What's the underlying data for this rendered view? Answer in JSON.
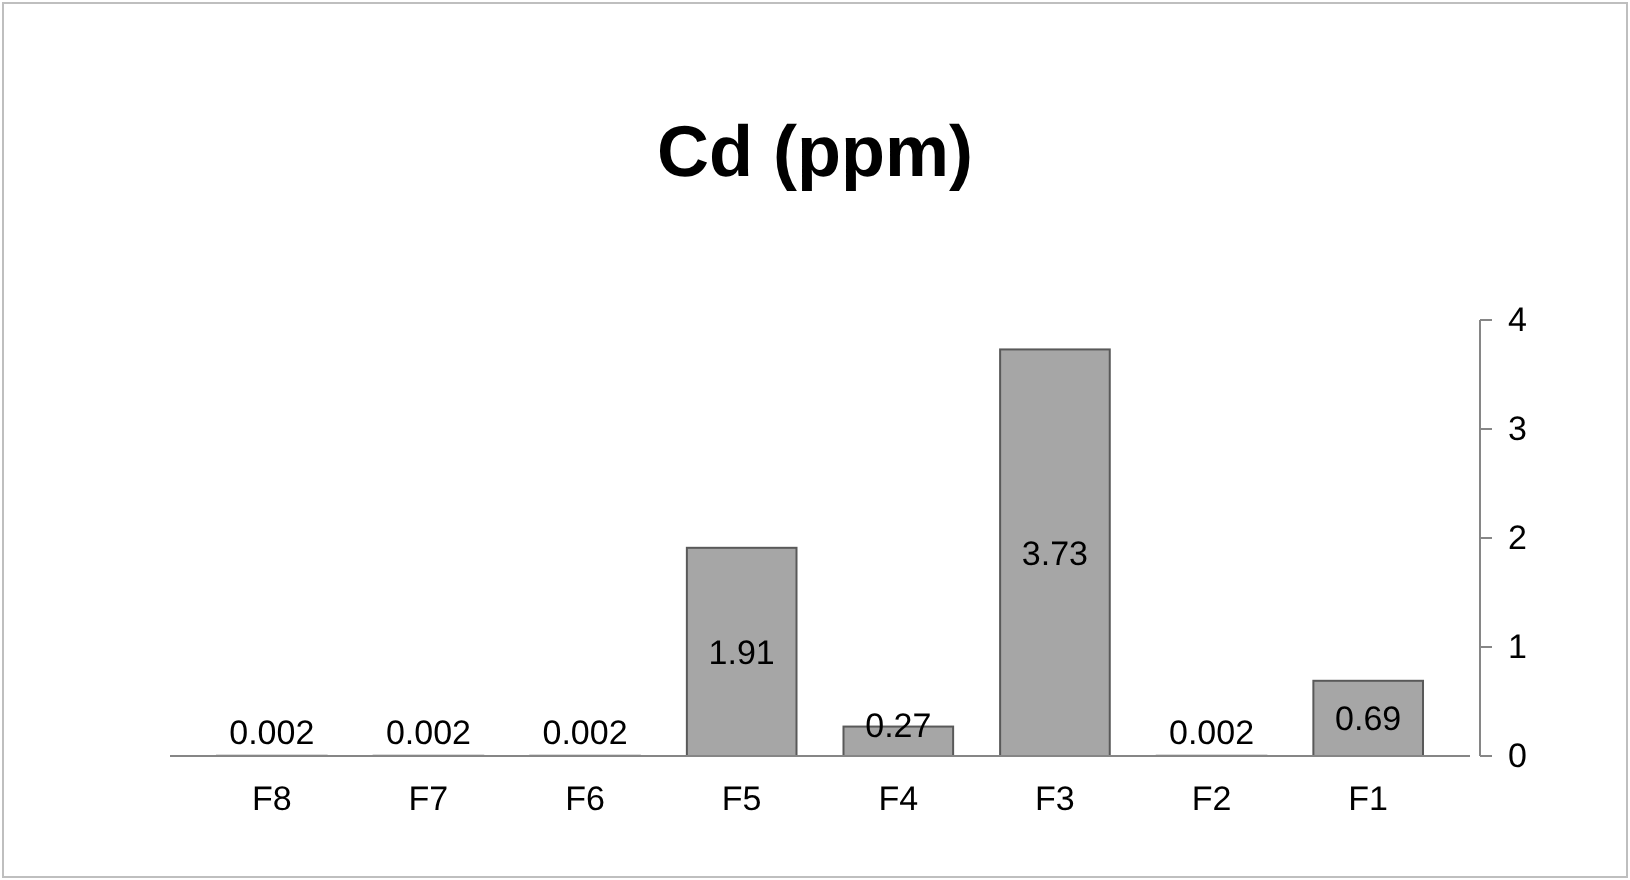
{
  "chart_data": {
    "type": "bar",
    "title": "Cd (ppm)",
    "categories": [
      "F8",
      "F7",
      "F6",
      "F5",
      "F4",
      "F3",
      "F2",
      "F1"
    ],
    "values": [
      0.002,
      0.002,
      0.002,
      1.91,
      0.27,
      3.73,
      0.002,
      0.69
    ],
    "color": "#a6a6a6",
    "ylim": [
      0,
      4
    ],
    "yticks": [
      0,
      1,
      2,
      3,
      4
    ],
    "data_labels": true
  }
}
